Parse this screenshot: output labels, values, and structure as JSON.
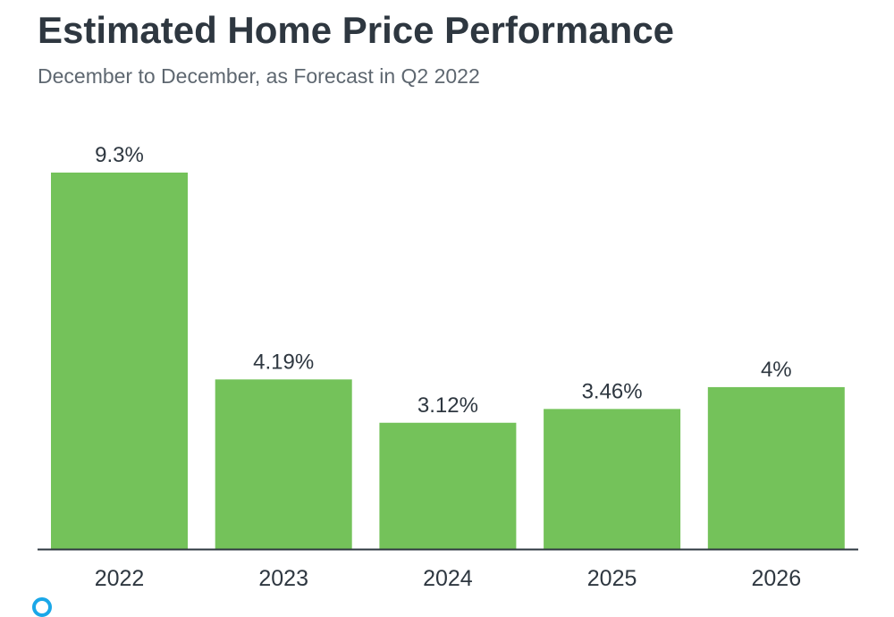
{
  "chart_data": {
    "type": "bar",
    "title": "Estimated Home Price Performance",
    "subtitle": "December to December, as Forecast in Q2 2022",
    "categories": [
      "2022",
      "2023",
      "2024",
      "2025",
      "2026"
    ],
    "values": [
      9.3,
      4.19,
      3.12,
      3.46,
      4
    ],
    "data_labels": [
      "9.3%",
      "4.19%",
      "3.12%",
      "3.46%",
      "4%"
    ],
    "xlabel": "",
    "ylabel": "",
    "ylim": [
      0,
      9.3
    ],
    "grid": false,
    "colors": {
      "bar": "#74c25a",
      "axis": "#2e3740",
      "text": "#2e3740"
    }
  }
}
